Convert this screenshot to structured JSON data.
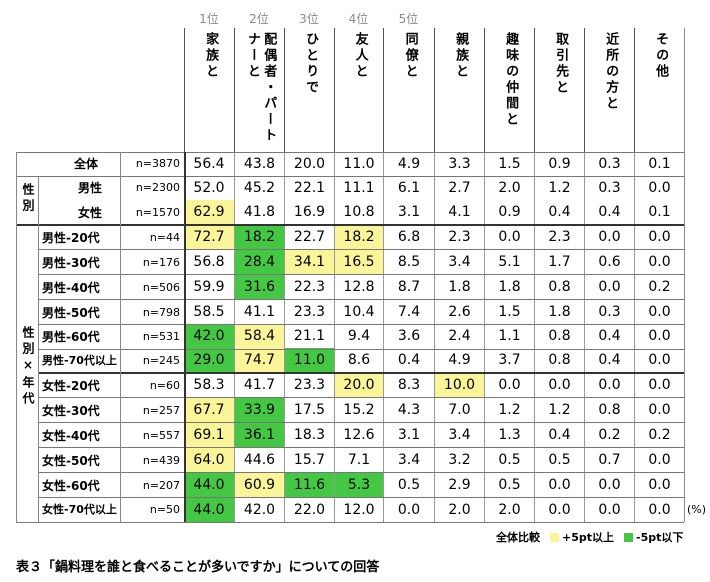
{
  "chart_data": {
    "type": "table",
    "ranks": [
      "1位",
      "2位",
      "3位",
      "4位",
      "5位"
    ],
    "columns": [
      "家族と",
      "配偶者・パートナーと",
      "ひとりで",
      "友人と",
      "同僚と",
      "親族と",
      "趣味の仲間と",
      "取引先と",
      "近所の方と",
      "その他"
    ],
    "rows": [
      {
        "label": "全体",
        "n": "n=3870",
        "values": [
          "56.4",
          "43.8",
          "20.0",
          "11.0",
          "4.9",
          "3.3",
          "1.5",
          "0.9",
          "0.3",
          "0.1"
        ],
        "marks": [
          "",
          "",
          "",
          "",
          "",
          "",
          "",
          "",
          "",
          ""
        ]
      },
      {
        "label": "男性",
        "n": "n=2300",
        "values": [
          "52.0",
          "45.2",
          "22.1",
          "11.1",
          "6.1",
          "2.7",
          "2.0",
          "1.2",
          "0.3",
          "0.0"
        ],
        "marks": [
          "",
          "",
          "",
          "",
          "",
          "",
          "",
          "",
          "",
          ""
        ]
      },
      {
        "label": "女性",
        "n": "n=1570",
        "values": [
          "62.9",
          "41.8",
          "16.9",
          "10.8",
          "3.1",
          "4.1",
          "0.9",
          "0.4",
          "0.4",
          "0.1"
        ],
        "marks": [
          "y",
          "",
          "",
          "",
          "",
          "",
          "",
          "",
          "",
          ""
        ]
      },
      {
        "label": "男性-20代",
        "n": "n=44",
        "values": [
          "72.7",
          "18.2",
          "22.7",
          "18.2",
          "6.8",
          "2.3",
          "0.0",
          "2.3",
          "0.0",
          "0.0"
        ],
        "marks": [
          "y",
          "g",
          "",
          "y",
          "",
          "",
          "",
          "",
          "",
          ""
        ]
      },
      {
        "label": "男性-30代",
        "n": "n=176",
        "values": [
          "56.8",
          "28.4",
          "34.1",
          "16.5",
          "8.5",
          "3.4",
          "5.1",
          "1.7",
          "0.6",
          "0.0"
        ],
        "marks": [
          "",
          "g",
          "y",
          "y",
          "",
          "",
          "",
          "",
          "",
          ""
        ]
      },
      {
        "label": "男性-40代",
        "n": "n=506",
        "values": [
          "59.9",
          "31.6",
          "22.3",
          "12.8",
          "8.7",
          "1.8",
          "1.8",
          "0.8",
          "0.0",
          "0.2"
        ],
        "marks": [
          "",
          "g",
          "",
          "",
          "",
          "",
          "",
          "",
          "",
          ""
        ]
      },
      {
        "label": "男性-50代",
        "n": "n=798",
        "values": [
          "58.5",
          "41.1",
          "23.3",
          "10.4",
          "7.4",
          "2.6",
          "1.5",
          "1.8",
          "0.3",
          "0.0"
        ],
        "marks": [
          "",
          "",
          "",
          "",
          "",
          "",
          "",
          "",
          "",
          ""
        ]
      },
      {
        "label": "男性-60代",
        "n": "n=531",
        "values": [
          "42.0",
          "58.4",
          "21.1",
          "9.4",
          "3.6",
          "2.4",
          "1.1",
          "0.8",
          "0.4",
          "0.0"
        ],
        "marks": [
          "g",
          "y",
          "",
          "",
          "",
          "",
          "",
          "",
          "",
          ""
        ]
      },
      {
        "label": "男性-70代以上",
        "n": "n=245",
        "values": [
          "29.0",
          "74.7",
          "11.0",
          "8.6",
          "0.4",
          "4.9",
          "3.7",
          "0.8",
          "0.4",
          "0.0"
        ],
        "marks": [
          "g",
          "y",
          "g",
          "",
          "",
          "",
          "",
          "",
          "",
          ""
        ]
      },
      {
        "label": "女性-20代",
        "n": "n=60",
        "values": [
          "58.3",
          "41.7",
          "23.3",
          "20.0",
          "8.3",
          "10.0",
          "0.0",
          "0.0",
          "0.0",
          "0.0"
        ],
        "marks": [
          "",
          "",
          "",
          "y",
          "",
          "y",
          "",
          "",
          "",
          ""
        ]
      },
      {
        "label": "女性-30代",
        "n": "n=257",
        "values": [
          "67.7",
          "33.9",
          "17.5",
          "15.2",
          "4.3",
          "7.0",
          "1.2",
          "1.2",
          "0.8",
          "0.0"
        ],
        "marks": [
          "y",
          "g",
          "",
          "",
          "",
          "",
          "",
          "",
          "",
          ""
        ]
      },
      {
        "label": "女性-40代",
        "n": "n=557",
        "values": [
          "69.1",
          "36.1",
          "18.3",
          "12.6",
          "3.1",
          "3.4",
          "1.3",
          "0.4",
          "0.2",
          "0.2"
        ],
        "marks": [
          "y",
          "g",
          "",
          "",
          "",
          "",
          "",
          "",
          "",
          ""
        ]
      },
      {
        "label": "女性-50代",
        "n": "n=439",
        "values": [
          "64.0",
          "44.6",
          "15.7",
          "7.1",
          "3.4",
          "3.2",
          "0.5",
          "0.5",
          "0.7",
          "0.0"
        ],
        "marks": [
          "y",
          "",
          "",
          "",
          "",
          "",
          "",
          "",
          "",
          ""
        ]
      },
      {
        "label": "女性-60代",
        "n": "n=207",
        "values": [
          "44.0",
          "60.9",
          "11.6",
          "5.3",
          "0.5",
          "2.9",
          "0.5",
          "0.0",
          "0.0",
          "0.0"
        ],
        "marks": [
          "g",
          "y",
          "g",
          "g",
          "",
          "",
          "",
          "",
          "",
          ""
        ]
      },
      {
        "label": "女性-70代以上",
        "n": "n=50",
        "values": [
          "44.0",
          "42.0",
          "22.0",
          "12.0",
          "0.0",
          "2.0",
          "2.0",
          "0.0",
          "0.0",
          "0.0"
        ],
        "marks": [
          "g",
          "",
          "",
          "",
          "",
          "",
          "",
          "",
          "",
          ""
        ]
      }
    ],
    "group_labels": [
      "性別",
      "性別×年代"
    ],
    "unit": "(%)",
    "legend": {
      "title": "全体比較",
      "plus": "+5pt以上",
      "minus": "-5pt以下"
    },
    "colors": {
      "plus": "#fbf59a",
      "minus": "#44c844"
    }
  },
  "caption": "表３「鍋料理を誰と食べることが多いですか」についての回答"
}
